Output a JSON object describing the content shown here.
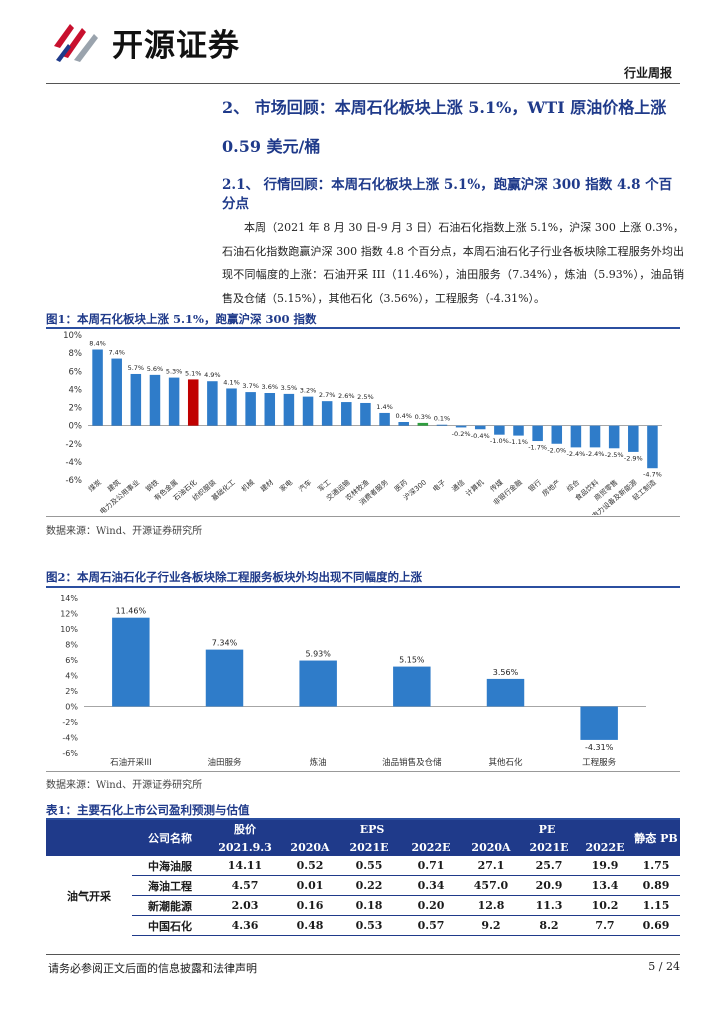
{
  "header": {
    "logo_text": "开源证券",
    "tag": "行业周报"
  },
  "section": {
    "title_line1": "2、 市场回顾：本周石化板块上涨 5.1%，WTI 原油价格上涨",
    "title_line2": "0.59 美元/桶",
    "sub_line1": "2.1、 行情回顾：本周石化板块上涨 5.1%，跑赢沪深 300 指数 4.8 个百",
    "sub_line2": "分点",
    "paragraph": "本周（2021 年 8 月 30 日-9 月 3 日）石油石化指数上涨 5.1%，沪深 300 上涨 0.3%，石油石化指数跑赢沪深 300 指数 4.8 个百分点，本周石油石化子行业各板块除工程服务外均出现不同幅度的上涨：石油开采 III（11.46%），油田服务（7.34%），炼油（5.93%），油品销售及仓储（5.15%），其他石化（3.56%），工程服务（-4.31%）。"
  },
  "figure1": {
    "title": "图1：本周石化板块上涨 5.1%，跑赢沪深 300 指数",
    "source": "数据来源：Wind、开源证券研究所"
  },
  "figure2": {
    "title": "图2：本周石油石化子行业各板块除工程服务板块外均出现不同幅度的上涨",
    "source": "数据来源：Wind、开源证券研究所"
  },
  "chart_data": [
    {
      "type": "bar",
      "title": "本周石化板块上涨 5.1%，跑赢沪深 300 指数",
      "categories": [
        "煤炭",
        "建筑",
        "电力及公用事业",
        "钢铁",
        "有色金属",
        "石油石化",
        "纺织服装",
        "基础化工",
        "机械",
        "建材",
        "家电",
        "汽车",
        "军工",
        "交通运输",
        "农林牧渔",
        "消费者服务",
        "医药",
        "沪深300",
        "电子",
        "通信",
        "计算机",
        "传媒",
        "非银行金融",
        "银行",
        "房地产",
        "综合",
        "食品饮料",
        "商贸零售",
        "电力设备及新能源",
        "轻工制造"
      ],
      "values": [
        8.4,
        7.4,
        5.7,
        5.6,
        5.3,
        5.1,
        4.9,
        4.1,
        3.7,
        3.6,
        3.5,
        3.2,
        2.7,
        2.6,
        2.5,
        1.4,
        0.4,
        0.3,
        0.1,
        -0.2,
        -0.4,
        -1.0,
        -1.1,
        -1.7,
        -2.0,
        -2.4,
        -2.4,
        -2.5,
        -2.9,
        -4.7
      ],
      "value_labels": [
        "8.4%",
        "7.4%",
        "5.7%",
        "5.6%",
        "5.3%",
        "5.1%",
        "4.9%",
        "4.1%",
        "3.7%",
        "3.6%",
        "3.5%",
        "3.2%",
        "2.7%",
        "2.6%",
        "2.5%",
        "1.4%",
        "0.4%",
        "0.3%",
        "0.1%",
        "-0.2%",
        "-0.4%",
        "-1.0%",
        "-1.1%",
        "-1.7%",
        "-2.0%",
        "-2.4%",
        "-2.4%",
        "-2.5%",
        "-2.9%",
        "-4.7%"
      ],
      "highlight": {
        "石油石化": "#c00000",
        "沪深300": "#2e9e3e"
      },
      "bar_color": "#2f7cc9",
      "ylim": [
        -6,
        10
      ],
      "yticks": [
        "10%",
        "8%",
        "6%",
        "4%",
        "2%",
        "0%",
        "-2%",
        "-4%",
        "-6%"
      ]
    },
    {
      "type": "bar",
      "title": "本周石油石化子行业各板块除工程服务板块外均出现不同幅度的上涨",
      "categories": [
        "石油开采III",
        "油田服务",
        "炼油",
        "油品销售及仓储",
        "其他石化",
        "工程服务"
      ],
      "values": [
        11.46,
        7.34,
        5.93,
        5.15,
        3.56,
        -4.31
      ],
      "value_labels": [
        "11.46%",
        "7.34%",
        "5.93%",
        "5.15%",
        "3.56%",
        "-4.31%"
      ],
      "bar_color": "#2f7cc9",
      "ylim": [
        -6,
        14
      ],
      "yticks": [
        "14%",
        "12%",
        "10%",
        "8%",
        "6%",
        "4%",
        "2%",
        "0%",
        "-2%",
        "-4%",
        "-6%"
      ]
    }
  ],
  "table1": {
    "title": "表1：主要石化上市公司盈利预测与估值",
    "headers": {
      "company": "公司名称",
      "price": "股价",
      "eps": "EPS",
      "pe": "PE",
      "pb": "静态 PB",
      "sub": [
        "2021.9.3",
        "2020A",
        "2021E",
        "2022E",
        "2020A",
        "2021E",
        "2022E"
      ]
    },
    "sector": "油气开采",
    "rows": [
      [
        "中海油服",
        "14.11",
        "0.52",
        "0.55",
        "0.71",
        "27.1",
        "25.7",
        "19.9",
        "1.75"
      ],
      [
        "海油工程",
        "4.57",
        "0.01",
        "0.22",
        "0.34",
        "457.0",
        "20.9",
        "13.4",
        "0.89"
      ],
      [
        "新潮能源",
        "2.03",
        "0.16",
        "0.18",
        "0.20",
        "12.8",
        "11.3",
        "10.2",
        "1.15"
      ],
      [
        "中国石化",
        "4.36",
        "0.48",
        "0.53",
        "0.57",
        "9.2",
        "8.2",
        "7.7",
        "0.69"
      ]
    ]
  },
  "footer": {
    "disclaimer": "请务必参阅正文后面的信息披露和法律声明",
    "page": "5 / 24"
  }
}
